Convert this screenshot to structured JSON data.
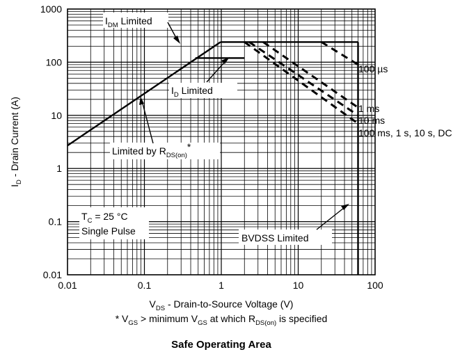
{
  "chart_data": {
    "type": "line",
    "title": "Safe Operating Area",
    "xlabel": {
      "main": "V",
      "sub": "DS",
      "rest": " - Drain-to-Source Voltage (V)"
    },
    "ylabel": {
      "main": "I",
      "sub": "D",
      "rest": " - Drain Current (A)"
    },
    "footnote": {
      "p1": "* V",
      "s1": "GS",
      "p2": " > minimum V",
      "s2": "GS",
      "p3": " at which R",
      "s3": "DS(on)",
      "p4": " is specified"
    },
    "x_scale": "log",
    "y_scale": "log",
    "xlim": [
      0.01,
      100
    ],
    "ylim": [
      0.01,
      1000
    ],
    "x_ticks": [
      "0.01",
      "0.1",
      "1",
      "10",
      "100"
    ],
    "y_ticks": [
      "0.01",
      "0.1",
      "1",
      "10",
      "100",
      "1000"
    ],
    "grid": true,
    "series": [
      {
        "id": "rds",
        "style": "solid",
        "x": [
          0.01,
          0.98
        ],
        "y": [
          2.7,
          240
        ]
      },
      {
        "id": "idm",
        "style": "solid",
        "x": [
          0.98,
          60
        ],
        "y": [
          240,
          240
        ]
      },
      {
        "id": "id",
        "style": "solid",
        "x": [
          0.46,
          2.0
        ],
        "y": [
          120,
          120
        ]
      },
      {
        "id": "bvdss",
        "style": "solid",
        "x": [
          60,
          60
        ],
        "y": [
          0.01,
          240
        ]
      },
      {
        "id": "us100",
        "style": "dashed",
        "x": [
          20,
          60
        ],
        "y": [
          240,
          90
        ]
      },
      {
        "id": "ms1",
        "style": "dashed",
        "x": [
          3.5,
          60
        ],
        "y": [
          240,
          14
        ]
      },
      {
        "id": "ms10",
        "style": "dashed",
        "x": [
          2.3,
          60
        ],
        "y": [
          240,
          10
        ]
      },
      {
        "id": "dc",
        "style": "dashed",
        "x": [
          2.0,
          60
        ],
        "y": [
          240,
          7
        ]
      }
    ],
    "annotations": {
      "idm": {
        "main": "I",
        "sub": "DM",
        "rest": " Limited"
      },
      "id": {
        "main": "I",
        "sub": "D",
        "rest": " Limited"
      },
      "rds": {
        "main": "Limited by R",
        "sub": "DS(on)",
        "rest": "*"
      },
      "tc": {
        "main": "T",
        "sub": "C",
        "rest": " = 25 °C"
      },
      "pulse": "Single Pulse",
      "bvdss": "BVDSS Limited",
      "us100": "100 µs",
      "ms1": "1 ms",
      "ms10": "10 ms",
      "dc": "100 ms, 1 s, 10 s, DC"
    }
  }
}
